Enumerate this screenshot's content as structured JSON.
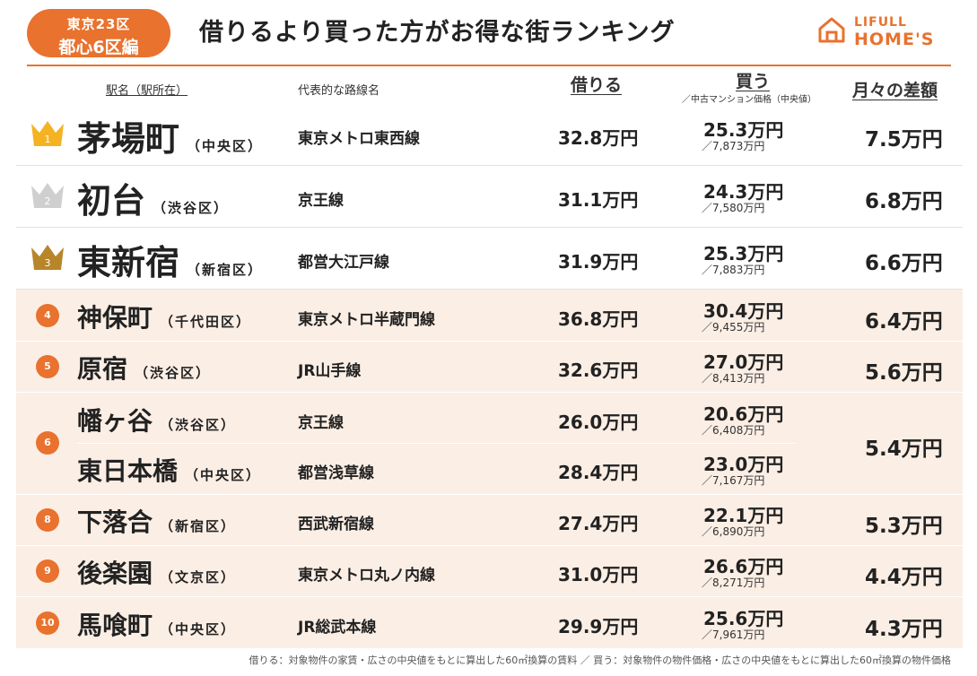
{
  "badge": {
    "line1": "東京23区",
    "line2": "都心6区編"
  },
  "title": "借りるより買った方がお得な街ランキング",
  "logo": {
    "line1": "LIFULL",
    "line2": "HOME'S"
  },
  "headers": {
    "station": "駅名（駅所在）",
    "line": "代表的な路線名",
    "rent": "借りる",
    "buy": "買う",
    "buy_sub": "／中古マンション価格（中央値）",
    "diff": "月々の差額"
  },
  "rows": [
    {
      "rank": "1",
      "station": "茅場町",
      "ward": "（中央区）",
      "line": "東京メトロ東西線",
      "rent": "32.8万円",
      "buy": "25.3万円",
      "price": "／7,873万円",
      "diff": "7.5万円"
    },
    {
      "rank": "2",
      "station": "初台",
      "ward": "（渋谷区）",
      "line": "京王線",
      "rent": "31.1万円",
      "buy": "24.3万円",
      "price": "／7,580万円",
      "diff": "6.8万円"
    },
    {
      "rank": "3",
      "station": "東新宿",
      "ward": "（新宿区）",
      "line": "都営大江戸線",
      "rent": "31.9万円",
      "buy": "25.3万円",
      "price": "／7,883万円",
      "diff": "6.6万円"
    },
    {
      "rank": "4",
      "station": "神保町",
      "ward": "（千代田区）",
      "line": "東京メトロ半蔵門線",
      "rent": "36.8万円",
      "buy": "30.4万円",
      "price": "／9,455万円",
      "diff": "6.4万円"
    },
    {
      "rank": "5",
      "station": "原宿",
      "ward": "（渋谷区）",
      "line": "JR山手線",
      "rent": "32.6万円",
      "buy": "27.0万円",
      "price": "／8,413万円",
      "diff": "5.6万円"
    },
    {
      "rank": "6",
      "station": "幡ヶ谷",
      "ward": "（渋谷区）",
      "line": "京王線",
      "rent": "26.0万円",
      "buy": "20.6万円",
      "price": "／6,408万円",
      "diff": "5.4万円"
    },
    {
      "rank": "",
      "station": "東日本橋",
      "ward": "（中央区）",
      "line": "都営浅草線",
      "rent": "28.4万円",
      "buy": "23.0万円",
      "price": "／7,167万円",
      "diff": ""
    },
    {
      "rank": "8",
      "station": "下落合",
      "ward": "（新宿区）",
      "line": "西武新宿線",
      "rent": "27.4万円",
      "buy": "22.1万円",
      "price": "／6,890万円",
      "diff": "5.3万円"
    },
    {
      "rank": "9",
      "station": "後楽園",
      "ward": "（文京区）",
      "line": "東京メトロ丸ノ内線",
      "rent": "31.0万円",
      "buy": "26.6万円",
      "price": "／8,271万円",
      "diff": "4.4万円"
    },
    {
      "rank": "10",
      "station": "馬喰町",
      "ward": "（中央区）",
      "line": "JR総武本線",
      "rent": "29.9万円",
      "buy": "25.6万円",
      "price": "／7,961万円",
      "diff": "4.3万円"
    }
  ],
  "footnote": "借りる：対象物件の家賃・広さの中央値をもとに算出した60㎡換算の賃料 ／ 買う：対象物件の物件価格・広さの中央値をもとに算出した60㎡換算の物件価格",
  "colors": {
    "accent": "#e8722e",
    "gold": "#f5b321",
    "silver": "#cfcfcf",
    "bronze": "#b8862a",
    "tint": "#fbeee5"
  }
}
